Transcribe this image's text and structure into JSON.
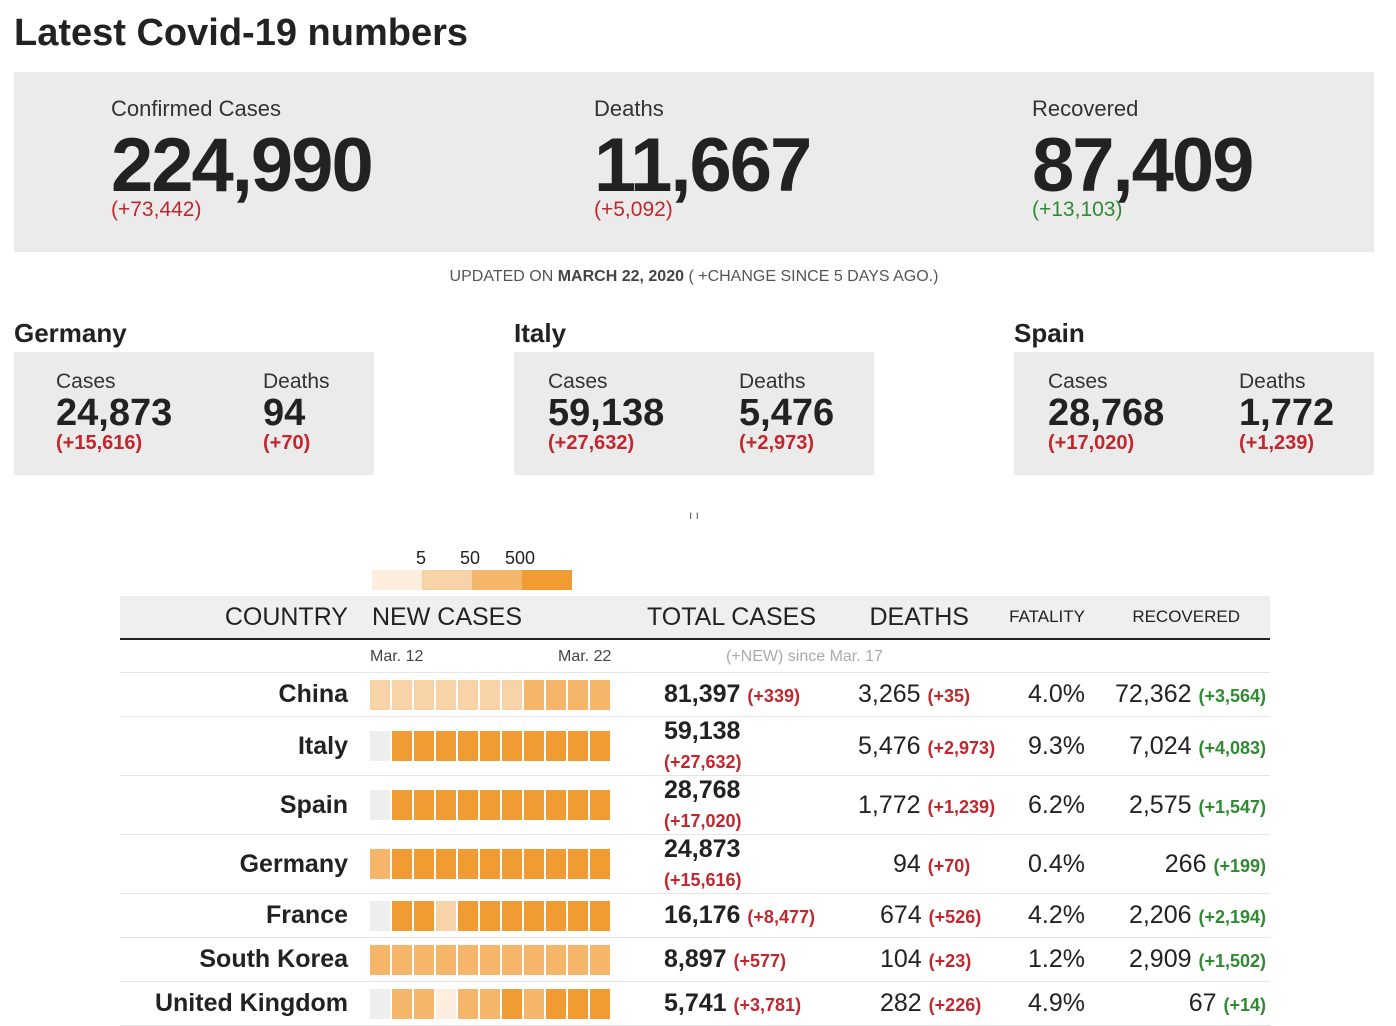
{
  "page_title": "Latest Covid-19 numbers",
  "colors": {
    "increase": "#c1272d",
    "recovered_increase": "#2f8a32",
    "panel_bg": "#ebebeb",
    "heat_1": "#fdeee0",
    "heat_2": "#f8d3a8",
    "heat_3": "#f5b56a",
    "heat_4": "#f09c33",
    "heat_none": "#eeeeee"
  },
  "summary": {
    "confirmed": {
      "label": "Confirmed Cases",
      "value": "224,990",
      "change": "(+73,442)"
    },
    "deaths": {
      "label": "Deaths",
      "value": "11,667",
      "change": "(+5,092)"
    },
    "recovered": {
      "label": "Recovered",
      "value": "87,409",
      "change": "(+13,103)"
    }
  },
  "updated": {
    "prefix": "UPDATED ON",
    "date": "MARCH 22, 2020",
    "suffix": "( +CHANGE SINCE 5 DAYS AGO.)"
  },
  "countries": [
    {
      "name": "Germany",
      "cases_label": "Cases",
      "cases": "24,873",
      "cases_change": "(+15,616)",
      "deaths_label": "Deaths",
      "deaths": "94",
      "deaths_change": "(+70)"
    },
    {
      "name": "Italy",
      "cases_label": "Cases",
      "cases": "59,138",
      "cases_change": "(+27,632)",
      "deaths_label": "Deaths",
      "deaths": "5,476",
      "deaths_change": "(+2,973)"
    },
    {
      "name": "Spain",
      "cases_label": "Cases",
      "cases": "28,768",
      "cases_change": "(+17,020)",
      "deaths_label": "Deaths",
      "deaths": "1,772",
      "deaths_change": "(+1,239)"
    }
  ],
  "tick_mark": "ı ı",
  "legend": {
    "labels": [
      "5",
      "50",
      "500"
    ]
  },
  "table": {
    "headers": {
      "country": "COUNTRY",
      "new_cases": "NEW CASES",
      "total_cases": "TOTAL CASES",
      "deaths": "DEATHS",
      "fatality": "FATALITY",
      "recovered": "RECOVERED"
    },
    "sub": {
      "start": "Mar. 12",
      "end": "Mar. 22",
      "note": "(+NEW) since Mar. 17"
    },
    "rows": [
      {
        "country": "China",
        "heat_levels": [
          2,
          2,
          2,
          2,
          2,
          2,
          2,
          3,
          3,
          3,
          3
        ],
        "total": "81,397",
        "total_change": "(+339)",
        "deaths": "3,265",
        "deaths_change": "(+35)",
        "fatality": "4.0%",
        "recovered": "72,362",
        "recovered_change": "(+3,564)"
      },
      {
        "country": "Italy",
        "heat_levels": [
          0,
          4,
          4,
          4,
          4,
          4,
          4,
          4,
          4,
          4,
          4
        ],
        "total": "59,138",
        "total_change": "(+27,632)",
        "deaths": "5,476",
        "deaths_change": "(+2,973)",
        "fatality": "9.3%",
        "recovered": "7,024",
        "recovered_change": "(+4,083)"
      },
      {
        "country": "Spain",
        "heat_levels": [
          0,
          4,
          4,
          4,
          4,
          4,
          4,
          4,
          4,
          4,
          4
        ],
        "total": "28,768",
        "total_change": "(+17,020)",
        "deaths": "1,772",
        "deaths_change": "(+1,239)",
        "fatality": "6.2%",
        "recovered": "2,575",
        "recovered_change": "(+1,547)"
      },
      {
        "country": "Germany",
        "heat_levels": [
          3,
          4,
          4,
          4,
          4,
          4,
          4,
          4,
          4,
          4,
          4
        ],
        "total": "24,873",
        "total_change": "(+15,616)",
        "deaths": "94",
        "deaths_change": "(+70)",
        "fatality": "0.4%",
        "recovered": "266",
        "recovered_change": "(+199)"
      },
      {
        "country": "France",
        "heat_levels": [
          0,
          4,
          4,
          2,
          4,
          4,
          4,
          4,
          4,
          4,
          4
        ],
        "total": "16,176",
        "total_change": "(+8,477)",
        "deaths": "674",
        "deaths_change": "(+526)",
        "fatality": "4.2%",
        "recovered": "2,206",
        "recovered_change": "(+2,194)"
      },
      {
        "country": "South Korea",
        "heat_levels": [
          3,
          3,
          3,
          3,
          3,
          3,
          3,
          3,
          3,
          3,
          3
        ],
        "total": "8,897",
        "total_change": "(+577)",
        "deaths": "104",
        "deaths_change": "(+23)",
        "fatality": "1.2%",
        "recovered": "2,909",
        "recovered_change": "(+1,502)"
      },
      {
        "country": "United Kingdom",
        "heat_levels": [
          0,
          3,
          3,
          1,
          3,
          3,
          4,
          3,
          4,
          4,
          4
        ],
        "total": "5,741",
        "total_change": "(+3,781)",
        "deaths": "282",
        "deaths_change": "(+226)",
        "fatality": "4.9%",
        "recovered": "67",
        "recovered_change": "(+14)"
      }
    ]
  }
}
